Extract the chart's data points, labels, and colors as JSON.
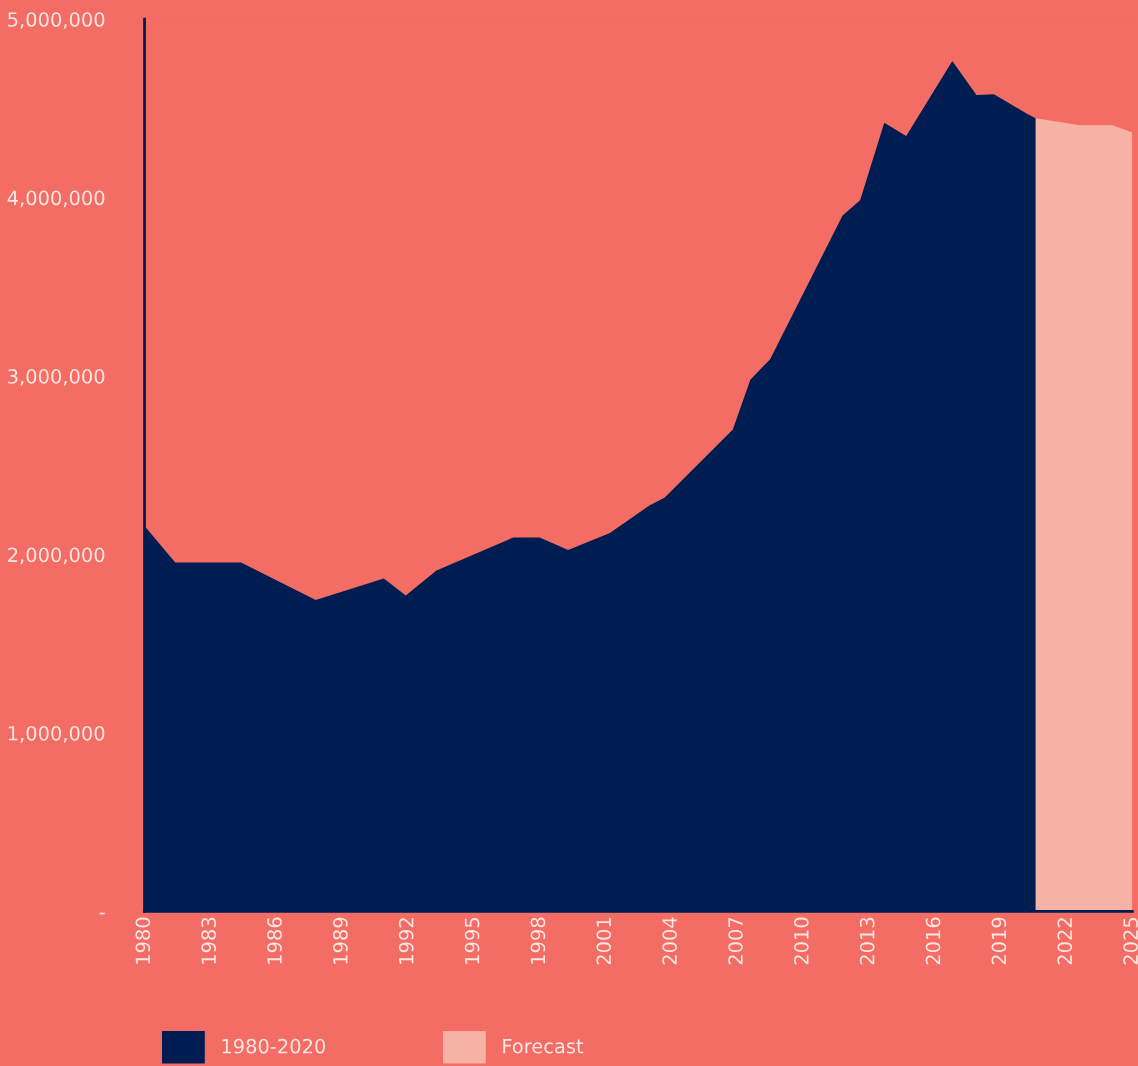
{
  "chart_data": {
    "type": "area",
    "series": [
      {
        "name": "1980-2020",
        "color": "#001d51",
        "x": [
          1980,
          1981.4,
          1984.4,
          1987.8,
          1990.9,
          1991.9,
          1993.3,
          1996.8,
          1998.0,
          1999.3,
          2001.2,
          2003.0,
          2003.7,
          2006.8,
          2007.6,
          2008.5,
          2011.8,
          2012.6,
          2013.7,
          2014.7,
          2016.8,
          2017.9,
          2018.7,
          2020.2,
          2020.6
        ],
        "values": [
          2160000,
          1955000,
          1955000,
          1745000,
          1865000,
          1770000,
          1910000,
          2095000,
          2095000,
          2025000,
          2120000,
          2275000,
          2320000,
          2700000,
          2980000,
          3095000,
          3900000,
          3985000,
          4420000,
          4345000,
          4765000,
          4575000,
          4580000,
          4470000,
          4445000
        ]
      },
      {
        "name": "Forecast",
        "color": "#f7b2a6",
        "x": [
          2020.6,
          2022.6,
          2024.1,
          2025
        ],
        "values": [
          4445000,
          4405000,
          4405000,
          4365000
        ]
      }
    ],
    "xlim": [
      1980,
      2025
    ],
    "xticks": [
      1980,
      1983,
      1986,
      1989,
      1992,
      1995,
      1998,
      2001,
      2004,
      2007,
      2010,
      2013,
      2016,
      2019,
      2022,
      2025
    ],
    "ylim": [
      0,
      5000000
    ],
    "yticks": [
      {
        "value": 0,
        "label": "-"
      },
      {
        "value": 1000000,
        "label": "1,000,000"
      },
      {
        "value": 2000000,
        "label": "2,000,000"
      },
      {
        "value": 3000000,
        "label": "3,000,000"
      },
      {
        "value": 4000000,
        "label": "4,000,000"
      },
      {
        "value": 5000000,
        "label": "5,000,000"
      }
    ],
    "grid": false,
    "legend": "bottom left"
  }
}
